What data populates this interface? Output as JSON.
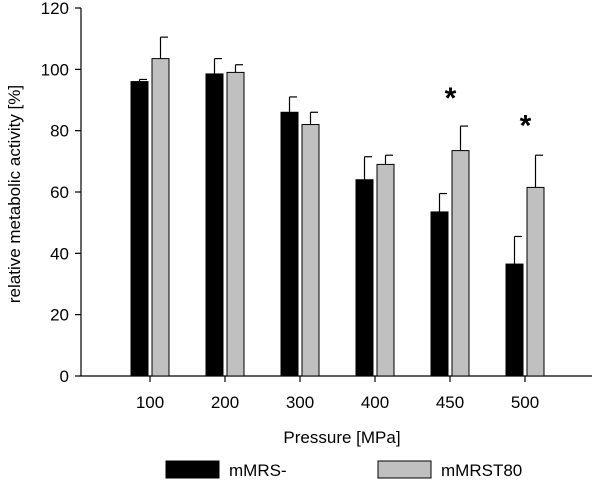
{
  "chart_data": {
    "type": "bar",
    "title": "",
    "xlabel": "Pressure [MPa]",
    "ylabel": "relative metabolic activity [%]",
    "ylim": [
      0,
      120
    ],
    "yticks": [
      0,
      20,
      40,
      60,
      80,
      100,
      120
    ],
    "categories": [
      "100",
      "200",
      "300",
      "400",
      "450",
      "500"
    ],
    "series": [
      {
        "name": "mMRS-",
        "color": "#000000",
        "values": [
          96,
          98.5,
          86,
          64,
          53.5,
          36.5
        ],
        "errors": [
          0.7,
          5,
          5,
          7.5,
          6,
          9
        ]
      },
      {
        "name": "mMRST80",
        "color": "#c0c0c0",
        "values": [
          103.5,
          99,
          82,
          69,
          73.5,
          61.5
        ],
        "errors": [
          7,
          2.5,
          4,
          3,
          8,
          10.5
        ]
      }
    ],
    "annotations": [
      {
        "category": "450",
        "text": "*",
        "y": 92
      },
      {
        "category": "500",
        "text": "*",
        "y": 83
      }
    ],
    "legend": "bottom",
    "grid": false
  }
}
